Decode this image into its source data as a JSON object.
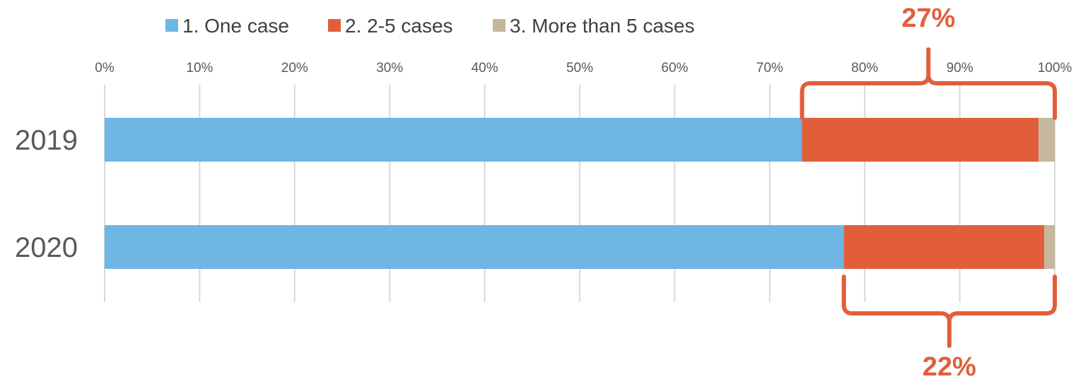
{
  "chart_data": {
    "type": "bar",
    "orientation": "horizontal",
    "stacked": "percent",
    "categories": [
      "2019",
      "2020"
    ],
    "series": [
      {
        "name": "1. One case",
        "values": [
          73.4,
          77.8
        ]
      },
      {
        "name": "2. 2-5 cases",
        "values": [
          24.9,
          21.1
        ]
      },
      {
        "name": "3. More than 5 cases",
        "values": [
          1.7,
          1.1
        ]
      }
    ],
    "xlim": [
      0,
      100
    ],
    "x_ticks": [
      "0%",
      "10%",
      "20%",
      "30%",
      "40%",
      "50%",
      "60%",
      "70%",
      "80%",
      "90%",
      "100%"
    ],
    "grid": "vertical",
    "legend_position": "top",
    "annotations": [
      {
        "label": "27%",
        "category": "2019",
        "range": [
          73.4,
          100
        ],
        "position": "above"
      },
      {
        "label": "22%",
        "category": "2020",
        "range": [
          77.8,
          100
        ],
        "position": "below"
      }
    ]
  },
  "colors": {
    "series": [
      "#6fb6e3",
      "#e25e3b",
      "#c4b79d"
    ],
    "annotation": "#e25e3b",
    "grid": "#d9d9d9",
    "text": "#595959"
  }
}
